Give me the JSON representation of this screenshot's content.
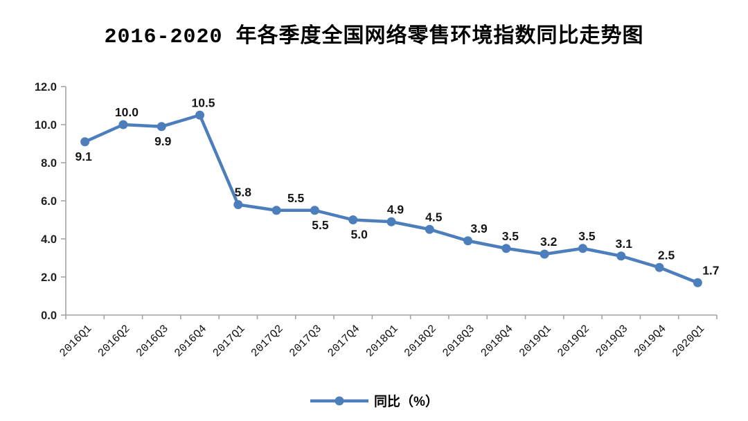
{
  "title": "2016-2020 年各季度全国网络零售环境指数同比走势图",
  "legend": {
    "label": "同比（%）"
  },
  "colors": {
    "line": "#4B7EBB",
    "marker": "#4B7EBB",
    "axis": "#A3A3A3",
    "title_text": "#000000",
    "label_text": "#151515"
  },
  "chart_data": {
    "type": "line",
    "title": "2016-2020 年各季度全国网络零售环境指数同比走势图",
    "categories": [
      "2016Q1",
      "2016Q2",
      "2016Q3",
      "2016Q4",
      "2017Q1",
      "2017Q2",
      "2017Q3",
      "2017Q4",
      "2018Q1",
      "2018Q2",
      "2018Q3",
      "2018Q4",
      "2019Q1",
      "2019Q2",
      "2019Q3",
      "2019Q4",
      "2020Q1"
    ],
    "series": [
      {
        "name": "同比（%）",
        "values": [
          9.1,
          10.0,
          9.9,
          10.5,
          5.8,
          5.5,
          5.5,
          5.0,
          4.9,
          4.5,
          3.9,
          3.5,
          3.2,
          3.5,
          3.1,
          2.5,
          1.7
        ]
      }
    ],
    "value_labels": [
      "9.1",
      "10.0",
      "9.9",
      "10.5",
      "5.8",
      "5.5",
      "5.5",
      "5.0",
      "4.9",
      "4.5",
      "3.9",
      "3.5",
      "3.2",
      "3.5",
      "3.1",
      "2.5",
      "1.7"
    ],
    "label_positions": [
      "below",
      "above",
      "below",
      "above",
      "above",
      "above",
      "below",
      "below",
      "above",
      "above",
      "above",
      "above",
      "above",
      "above",
      "above",
      "above",
      "above"
    ],
    "label_dx": [
      -2,
      5,
      2,
      5,
      7,
      28,
      8,
      9,
      6,
      6,
      16,
      6,
      6,
      6,
      4,
      10,
      19
    ],
    "xlabel": "",
    "ylabel": "",
    "ylim": [
      0,
      12
    ],
    "ytick_step": 2,
    "yticks": [
      "0.0",
      "2.0",
      "4.0",
      "6.0",
      "8.0",
      "10.0",
      "12.0"
    ],
    "grid": false,
    "legend_position": "bottom",
    "marker": "circle",
    "x_tick_rotation": -45
  }
}
